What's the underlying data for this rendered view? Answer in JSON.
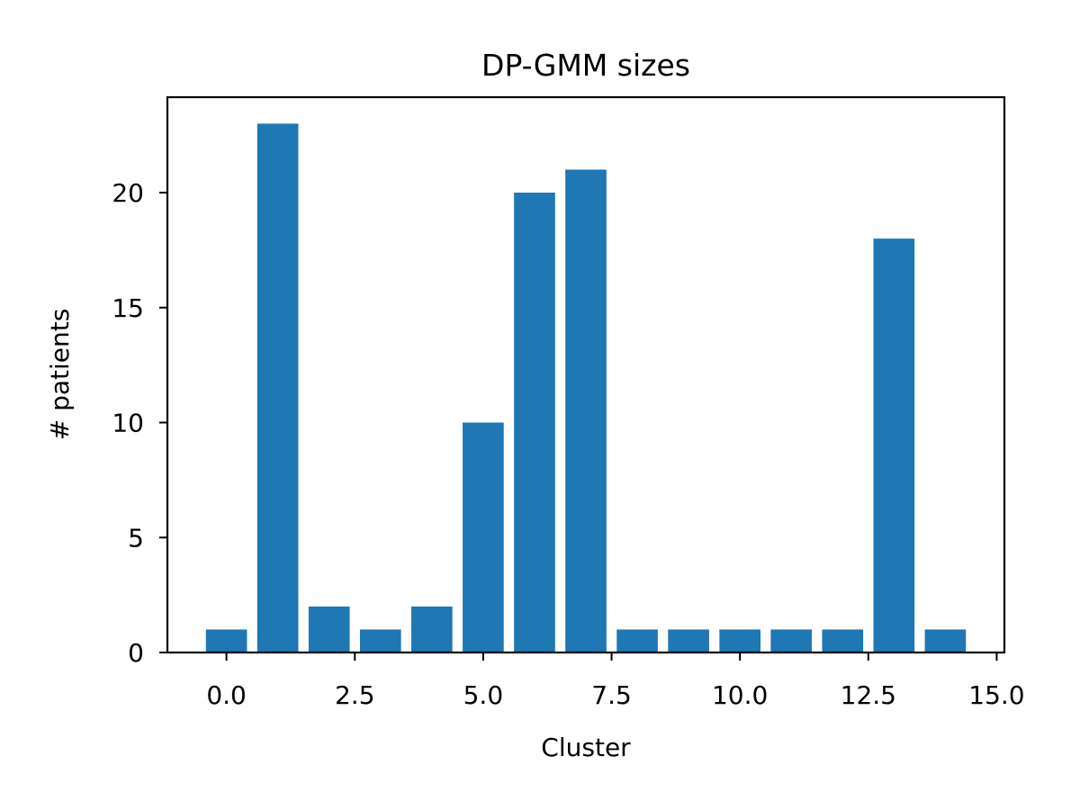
{
  "chart_data": {
    "type": "bar",
    "title": "DP-GMM sizes",
    "xlabel": "Cluster",
    "ylabel": "# patients",
    "x": [
      0,
      1,
      2,
      3,
      4,
      5,
      6,
      7,
      8,
      9,
      10,
      11,
      12,
      13,
      14
    ],
    "values": [
      1,
      23,
      2,
      1,
      2,
      10,
      20,
      21,
      1,
      1,
      1,
      1,
      1,
      18,
      1
    ],
    "bar_color": "#1f77b4",
    "xlim": [
      -1.15,
      15.15
    ],
    "ylim": [
      0,
      24.15
    ],
    "xticks": [
      0.0,
      2.5,
      5.0,
      7.5,
      10.0,
      12.5,
      15.0
    ],
    "xtick_labels": [
      "0.0",
      "2.5",
      "5.0",
      "7.5",
      "10.0",
      "12.5",
      "15.0"
    ],
    "yticks": [
      0,
      5,
      10,
      15,
      20
    ],
    "ytick_labels": [
      "0",
      "5",
      "10",
      "15",
      "20"
    ],
    "grid": false,
    "legend": "none"
  }
}
